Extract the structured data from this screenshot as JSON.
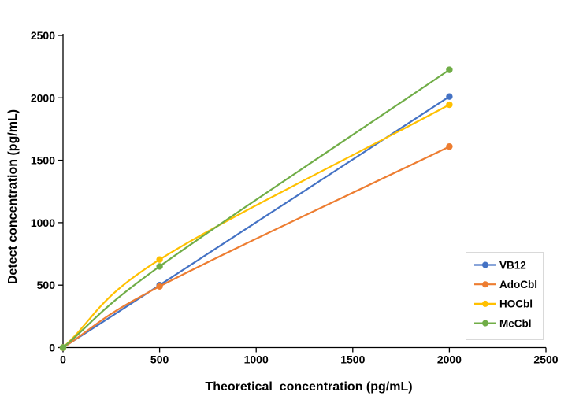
{
  "chart_data": {
    "type": "line",
    "xlabel": "Theoretical  concentration (pg/mL)",
    "ylabel": "Detect concentration (pg/mL)",
    "x": [
      0,
      500,
      2000
    ],
    "series": [
      {
        "name": "VB12",
        "color": "#4472C4",
        "values": [
          0,
          500,
          2010
        ]
      },
      {
        "name": "AdoCbl",
        "color": "#ED7D31",
        "values": [
          0,
          490,
          1610
        ]
      },
      {
        "name": "HOCbl",
        "color": "#FFC000",
        "values": [
          0,
          705,
          1945
        ]
      },
      {
        "name": "MeCbl",
        "color": "#70AD47",
        "values": [
          0,
          650,
          2225
        ]
      }
    ],
    "xlim": [
      0,
      2500
    ],
    "ylim": [
      0,
      2500
    ],
    "xticks": [
      0,
      500,
      1000,
      1500,
      2000,
      2500
    ],
    "yticks": [
      0,
      500,
      1000,
      1500,
      2000,
      2500
    ],
    "grid": false,
    "smoothed": true,
    "marker": "circle",
    "axis_color": "#000000",
    "tick_label_color": "#000000",
    "legend": {
      "position": "right-middle",
      "border_color": "#D9D9D9",
      "background": "#ffffff",
      "entries": [
        "VB12",
        "AdoCbl",
        "HOCbl",
        "MeCbl"
      ]
    }
  }
}
